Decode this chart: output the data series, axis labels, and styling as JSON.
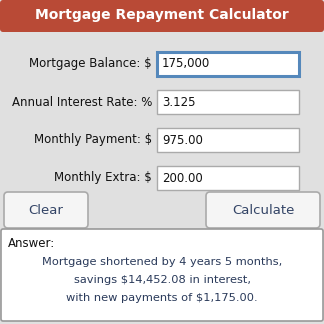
{
  "title": "Mortgage Repayment Calculator",
  "title_bg": "#b94a36",
  "title_fg": "#ffffff",
  "bg_color": "#e0e0e0",
  "fields": [
    {
      "label": "Mortgage Balance: $",
      "value": "175,000",
      "highlight": true
    },
    {
      "label": "Annual Interest Rate: %",
      "value": "3.125",
      "highlight": false
    },
    {
      "label": "Monthly Payment: $",
      "value": "975.00",
      "highlight": false
    },
    {
      "label": "Monthly Extra: $",
      "value": "200.00",
      "highlight": false
    }
  ],
  "btn_clear": "Clear",
  "btn_calculate": "Calculate",
  "answer_label": "Answer:",
  "answer_lines": [
    "Mortgage shortened by 4 years 5 months,",
    "savings $14,452.08 in interest,",
    "with new payments of $1,175.00."
  ],
  "field_box_color": "#ffffff",
  "field_border_color": "#aaaaaa",
  "highlight_border_color": "#5588bb",
  "answer_bg": "#ffffff",
  "answer_border": "#999999",
  "btn_bg": "#f5f5f5",
  "btn_border": "#aaaaaa",
  "btn_text_color": "#334466",
  "answer_text_color": "#2a3a5a",
  "answer_label_color": "#111111"
}
